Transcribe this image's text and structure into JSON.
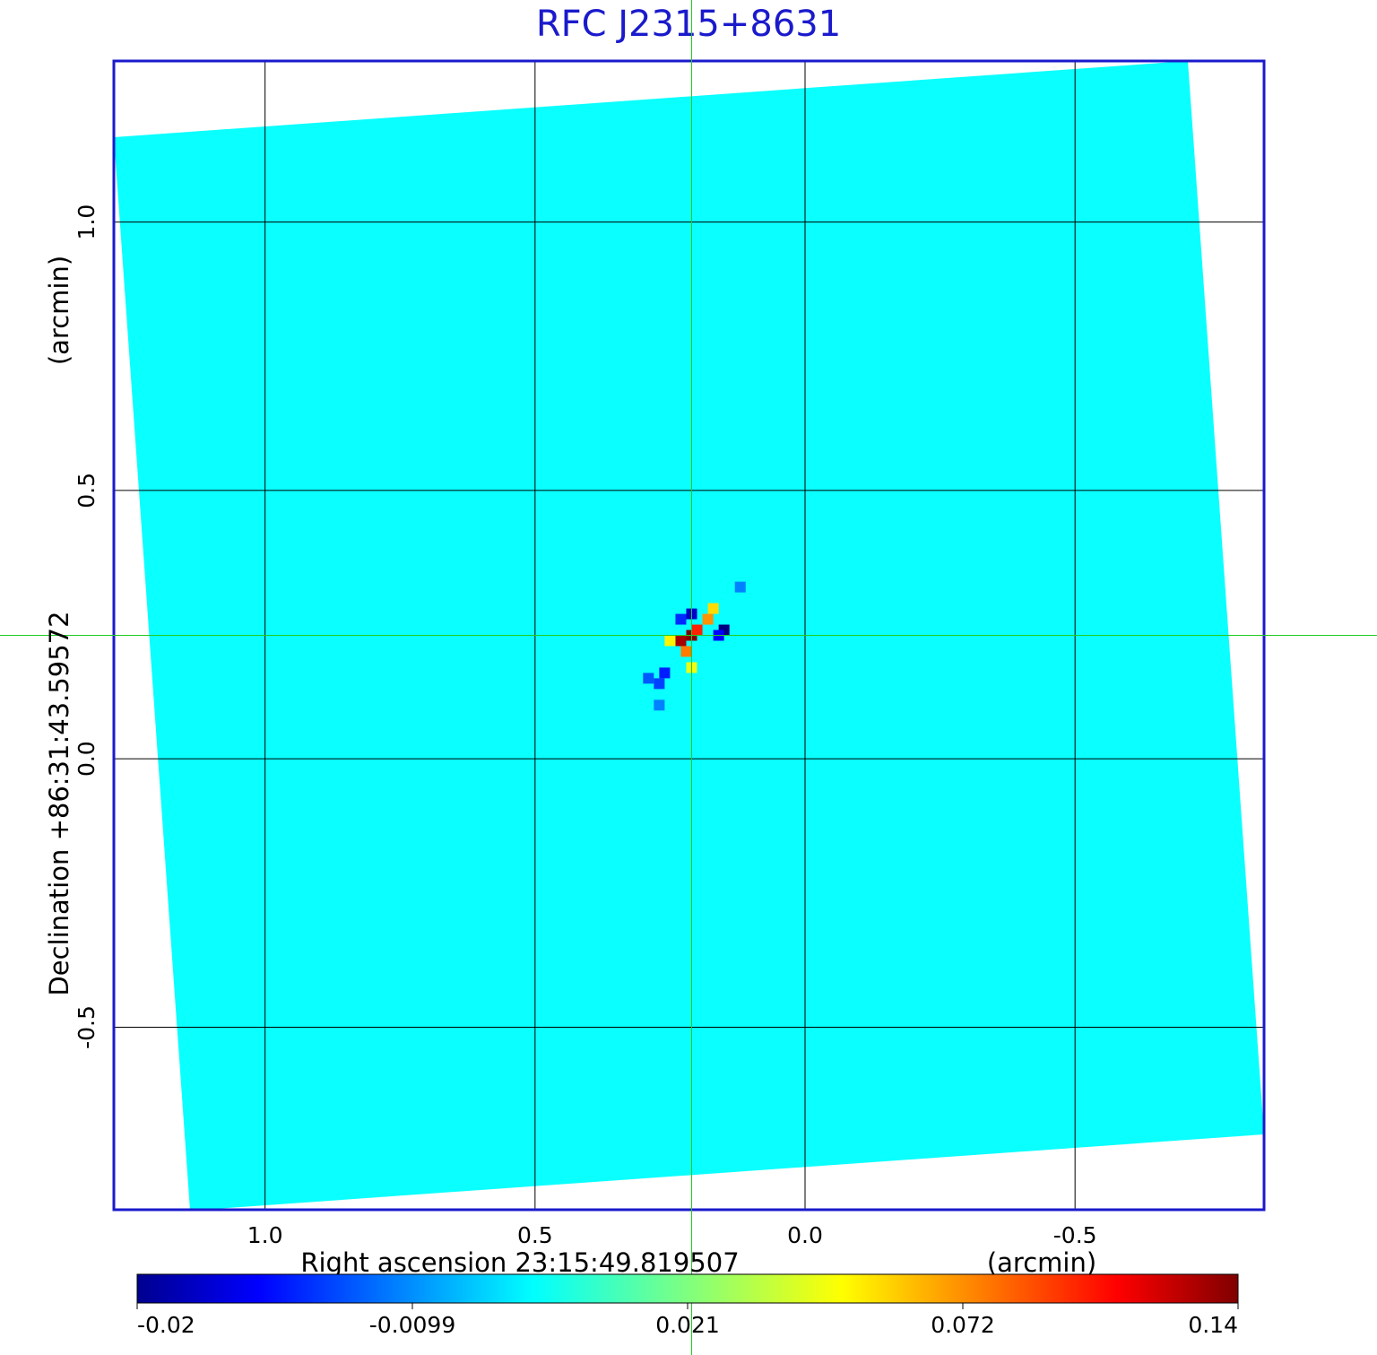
{
  "chart_data": {
    "type": "heatmap",
    "title": "RFC J2315+8631",
    "xlabel": "Right ascension  23:15:49.819507",
    "xlabel_unit": "(arcmin)",
    "ylabel": "Declination  +86:31:43.59572",
    "ylabel_unit": "(arcmin)",
    "x_ticks": [
      "1.0",
      "0.5",
      "0.0",
      "-0.5"
    ],
    "x_tick_values": [
      1.0,
      0.5,
      0.0,
      -0.5
    ],
    "y_ticks": [
      "1.0",
      "0.5",
      "0.0",
      "-0.5"
    ],
    "y_tick_values": [
      1.0,
      0.5,
      0.0,
      -0.5
    ],
    "xlim": [
      1.28,
      -0.85
    ],
    "ylim": [
      -0.84,
      1.3
    ],
    "grid": true,
    "crosshair": [
      0.21,
      0.23
    ],
    "colorbar": {
      "orientation": "horizontal",
      "colormap": "jet",
      "ticks": [
        "-0.02",
        "-0.0099",
        "0.021",
        "0.072",
        "0.14"
      ],
      "range": [
        -0.02,
        0.14
      ]
    },
    "background_value": 0.0,
    "source": {
      "ra": 0.21,
      "dec": 0.23,
      "pixels": [
        {
          "dx": 0,
          "dy": 0,
          "v": 0.14
        },
        {
          "dx": 0.02,
          "dy": -0.01,
          "v": 0.13
        },
        {
          "dx": -0.01,
          "dy": 0.01,
          "v": 0.1
        },
        {
          "dx": 0.01,
          "dy": -0.03,
          "v": 0.08
        },
        {
          "dx": -0.04,
          "dy": 0.05,
          "v": 0.06
        },
        {
          "dx": -0.03,
          "dy": 0.03,
          "v": 0.075
        },
        {
          "dx": 0.04,
          "dy": -0.01,
          "v": 0.055
        },
        {
          "dx": 0.0,
          "dy": -0.06,
          "v": 0.05
        },
        {
          "dx": -0.06,
          "dy": 0.01,
          "v": -0.02
        },
        {
          "dx": -0.05,
          "dy": 0.0,
          "v": -0.015
        },
        {
          "dx": 0.0,
          "dy": 0.04,
          "v": -0.018
        },
        {
          "dx": 0.02,
          "dy": 0.03,
          "v": -0.012
        },
        {
          "dx": 0.05,
          "dy": -0.07,
          "v": -0.013
        },
        {
          "dx": 0.06,
          "dy": -0.09,
          "v": -0.01
        },
        {
          "dx": 0.08,
          "dy": -0.08,
          "v": -0.008
        },
        {
          "dx": -0.09,
          "dy": 0.09,
          "v": -0.004
        },
        {
          "dx": 0.06,
          "dy": -0.13,
          "v": -0.004
        }
      ]
    }
  }
}
